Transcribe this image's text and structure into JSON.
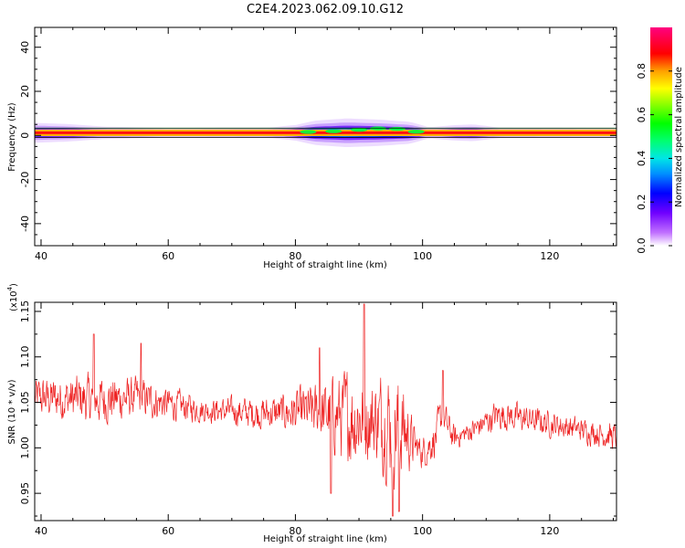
{
  "title": "C2E4.2023.062.09.10.G12",
  "chart_data": [
    {
      "type": "heatmap",
      "xlabel": "Height of straight line (km)",
      "ylabel": "Frequency (Hz)",
      "xlim": [
        39,
        130.5
      ],
      "ylim": [
        -50,
        49
      ],
      "xticks": [
        40,
        60,
        80,
        100,
        120
      ],
      "yticks": [
        -40,
        -20,
        0,
        20,
        40
      ],
      "grid": false,
      "band": {
        "center_hz": 1.2,
        "core_halfwidth_hz": 1.5,
        "envelope_halfwidth_hz": [
          {
            "x": 39,
            "w": 4.5
          },
          {
            "x": 44,
            "w": 4.0
          },
          {
            "x": 50,
            "w": 2.8
          },
          {
            "x": 60,
            "w": 2.2
          },
          {
            "x": 76,
            "w": 2.4
          },
          {
            "x": 80,
            "w": 3.5
          },
          {
            "x": 83,
            "w": 5.5
          },
          {
            "x": 88,
            "w": 6.5
          },
          {
            "x": 93,
            "w": 6.0
          },
          {
            "x": 98,
            "w": 5.0
          },
          {
            "x": 101,
            "w": 2.5
          },
          {
            "x": 105,
            "w": 3.5
          },
          {
            "x": 108,
            "w": 3.8
          },
          {
            "x": 112,
            "w": 2.4
          },
          {
            "x": 130.5,
            "w": 2.2
          }
        ]
      },
      "colorbar": {
        "label": "Normalized spectral amplitude",
        "range": [
          0,
          1
        ],
        "ticks": [
          "0.0",
          "0.2",
          "0.4",
          "0.6",
          "0.8"
        ]
      }
    },
    {
      "type": "line",
      "xlabel": "Height of straight line (km)",
      "ylabel": "SNR (10 * v/v)",
      "y_multiplier": "(x10",
      "y_multiplier_exp": "4",
      "y_multiplier_close": ")",
      "xlim": [
        39,
        130.5
      ],
      "ylim": [
        0.92,
        1.16
      ],
      "xticks": [
        40,
        60,
        80,
        100,
        120
      ],
      "yticks": [
        "0.95",
        "1.00",
        "1.05",
        "1.10",
        "1.15"
      ],
      "grid": false,
      "color": "#ee2222",
      "series": [
        {
          "mean_profile": [
            {
              "x": 39,
              "y": 1.055
            },
            {
              "x": 50,
              "y": 1.053
            },
            {
              "x": 55,
              "y": 1.055
            },
            {
              "x": 65,
              "y": 1.042
            },
            {
              "x": 75,
              "y": 1.038
            },
            {
              "x": 82,
              "y": 1.04
            },
            {
              "x": 88,
              "y": 1.035
            },
            {
              "x": 94,
              "y": 1.03
            },
            {
              "x": 97,
              "y": 1.02
            },
            {
              "x": 98.5,
              "y": 1.005
            },
            {
              "x": 100,
              "y": 0.995
            },
            {
              "x": 102,
              "y": 1.01
            },
            {
              "x": 103,
              "y": 1.035
            },
            {
              "x": 105,
              "y": 1.01
            },
            {
              "x": 108,
              "y": 1.02
            },
            {
              "x": 112,
              "y": 1.037
            },
            {
              "x": 120,
              "y": 1.027
            },
            {
              "x": 130.5,
              "y": 1.012
            }
          ],
          "amplitude_profile": [
            {
              "x": 39,
              "y": 0.02
            },
            {
              "x": 48,
              "y": 0.025
            },
            {
              "x": 56,
              "y": 0.02
            },
            {
              "x": 66,
              "y": 0.012
            },
            {
              "x": 78,
              "y": 0.018
            },
            {
              "x": 84,
              "y": 0.03
            },
            {
              "x": 89,
              "y": 0.05
            },
            {
              "x": 92,
              "y": 0.04
            },
            {
              "x": 95.5,
              "y": 0.06
            },
            {
              "x": 97.5,
              "y": 0.04
            },
            {
              "x": 99,
              "y": 0.015
            },
            {
              "x": 103,
              "y": 0.02
            },
            {
              "x": 106,
              "y": 0.01
            },
            {
              "x": 112,
              "y": 0.015
            },
            {
              "x": 125,
              "y": 0.012
            },
            {
              "x": 130.5,
              "y": 0.014
            }
          ],
          "peaks": [
            {
              "x": 48.3,
              "y": 1.125
            },
            {
              "x": 55.7,
              "y": 1.115
            },
            {
              "x": 90.8,
              "y": 1.158
            },
            {
              "x": 83.8,
              "y": 1.11
            },
            {
              "x": 95.3,
              "y": 0.925
            },
            {
              "x": 96.3,
              "y": 0.93
            },
            {
              "x": 85.6,
              "y": 0.95
            },
            {
              "x": 103.2,
              "y": 1.085
            }
          ]
        }
      ]
    }
  ]
}
